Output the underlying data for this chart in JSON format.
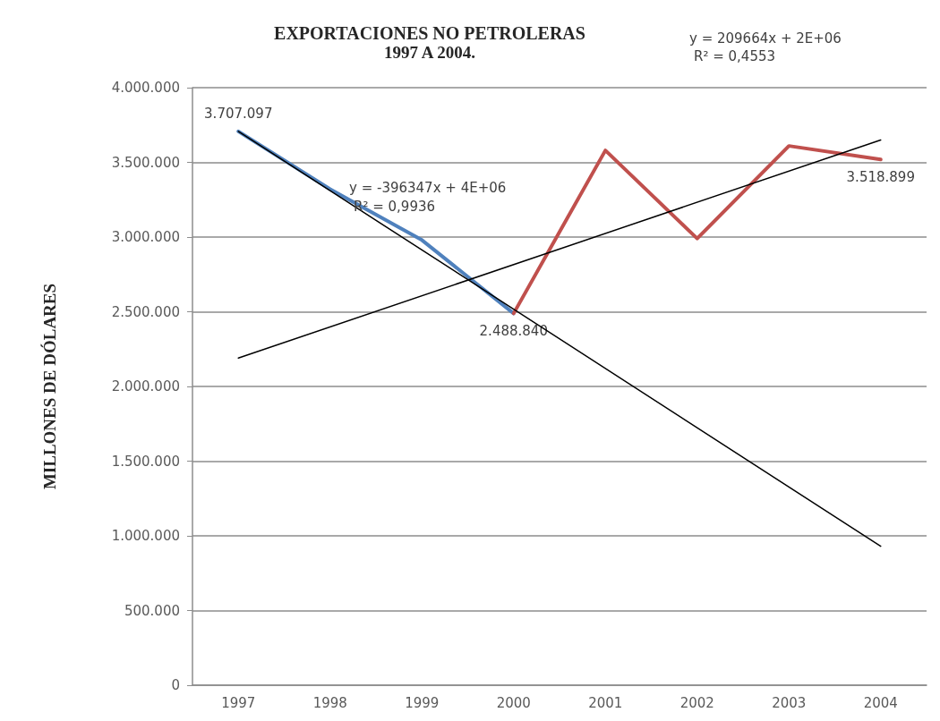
{
  "chart_data": {
    "type": "line",
    "title": "EXPORTACIONES NO PETROLERAS",
    "subtitle": "1997 A 2004.",
    "ylabel": "MILLONES DE DÓLARES",
    "categories": [
      "1997",
      "1998",
      "1999",
      "2000",
      "2001",
      "2002",
      "2003",
      "2004"
    ],
    "series": [
      {
        "color": "#4f81bd",
        "values": [
          3707097,
          3320000,
          2980000,
          2488840,
          null,
          null,
          null,
          null
        ],
        "value_labels": [
          "3.707.097",
          null,
          null,
          "2.488.840",
          null,
          null,
          null,
          null
        ]
      },
      {
        "color": "#c0504d",
        "values": [
          null,
          null,
          null,
          2488840,
          3580000,
          2990000,
          3610000,
          3518899
        ],
        "value_labels": [
          null,
          null,
          null,
          null,
          null,
          null,
          null,
          "3.518.899"
        ]
      },
      {
        "color": "#000000",
        "type": "line",
        "values": [
          3707000,
          null,
          null,
          null,
          null,
          null,
          null,
          930000
        ]
      },
      {
        "color": "#000000",
        "type": "line",
        "values": [
          2190000,
          null,
          null,
          null,
          null,
          null,
          null,
          3650000
        ]
      }
    ],
    "ylim": [
      0,
      4000000
    ],
    "yticks": [
      {
        "value": 0,
        "label": "0"
      },
      {
        "value": 500000,
        "label": "500.000"
      },
      {
        "value": 1000000,
        "label": "1.000.000"
      },
      {
        "value": 1500000,
        "label": "1.500.000"
      },
      {
        "value": 2000000,
        "label": "2.000.000"
      },
      {
        "value": 2500000,
        "label": "2.500.000"
      },
      {
        "value": 3000000,
        "label": "3.000.000"
      },
      {
        "value": 3500000,
        "label": "3.500.000"
      },
      {
        "value": 4000000,
        "label": "4.000.000"
      }
    ],
    "annotations": [
      "y = -396347x + 4E+06",
      "R² = 0,9936",
      "y = 209664x + 2E+06",
      "R² = 0,4553"
    ],
    "grid": "y",
    "marker": "none",
    "line_style": "solid"
  }
}
